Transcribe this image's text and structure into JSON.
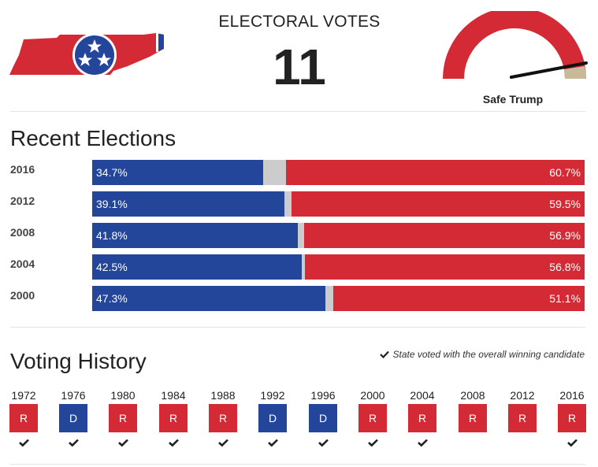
{
  "header": {
    "electoral_label": "ELECTORAL VOTES",
    "electoral_votes": "11",
    "rating": "Safe Trump"
  },
  "colors": {
    "dem": "#24469a",
    "rep": "#d42a35",
    "other": "#cccccc",
    "base": "#c8b99a"
  },
  "icons": {
    "state_map": "tennessee-flag-map-icon",
    "gauge": "rating-gauge-icon",
    "check": "check-icon"
  },
  "recent": {
    "title": "Recent Elections",
    "rows": [
      {
        "year": "2016",
        "dem_pct": 34.7,
        "rep_pct": 60.7,
        "dem_label": "34.7%",
        "rep_label": "60.7%"
      },
      {
        "year": "2012",
        "dem_pct": 39.1,
        "rep_pct": 59.5,
        "dem_label": "39.1%",
        "rep_label": "59.5%"
      },
      {
        "year": "2008",
        "dem_pct": 41.8,
        "rep_pct": 56.9,
        "dem_label": "41.8%",
        "rep_label": "56.9%"
      },
      {
        "year": "2004",
        "dem_pct": 42.5,
        "rep_pct": 56.8,
        "dem_label": "42.5%",
        "rep_label": "56.8%"
      },
      {
        "year": "2000",
        "dem_pct": 47.3,
        "rep_pct": 51.1,
        "dem_label": "47.3%",
        "rep_label": "51.1%"
      }
    ]
  },
  "history": {
    "title": "Voting History",
    "legend": "State voted with the overall winning candidate",
    "items": [
      {
        "year": "1972",
        "party": "R",
        "winner": true
      },
      {
        "year": "1976",
        "party": "D",
        "winner": true
      },
      {
        "year": "1980",
        "party": "R",
        "winner": true
      },
      {
        "year": "1984",
        "party": "R",
        "winner": true
      },
      {
        "year": "1988",
        "party": "R",
        "winner": true
      },
      {
        "year": "1992",
        "party": "D",
        "winner": true
      },
      {
        "year": "1996",
        "party": "D",
        "winner": true
      },
      {
        "year": "2000",
        "party": "R",
        "winner": true
      },
      {
        "year": "2004",
        "party": "R",
        "winner": true
      },
      {
        "year": "2008",
        "party": "R",
        "winner": false
      },
      {
        "year": "2012",
        "party": "R",
        "winner": false
      },
      {
        "year": "2016",
        "party": "R",
        "winner": true
      }
    ]
  }
}
